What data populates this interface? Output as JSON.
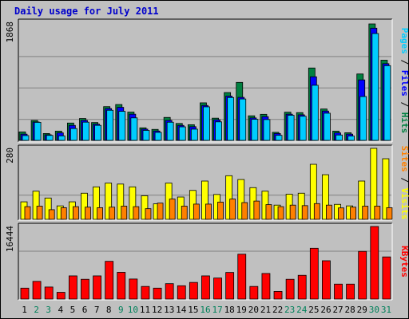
{
  "title": "Daily usage for July 2011",
  "chart_data": {
    "type": "bar",
    "title": "Daily usage for July 2011",
    "categories": [
      "1",
      "2",
      "3",
      "4",
      "5",
      "6",
      "7",
      "8",
      "9",
      "10",
      "11",
      "12",
      "13",
      "14",
      "15",
      "16",
      "17",
      "18",
      "19",
      "20",
      "21",
      "22",
      "23",
      "24",
      "25",
      "26",
      "27",
      "28",
      "29",
      "30",
      "31"
    ],
    "weekend_days": [
      "2",
      "3",
      "9",
      "10",
      "16",
      "17",
      "23",
      "24",
      "30",
      "31"
    ],
    "panels": [
      {
        "ylabel_parts": [
          "Pages",
          "Files",
          "Hits"
        ],
        "ylabel_colors": [
          "#00ccff",
          "#0000ff",
          "#008040"
        ],
        "ymax_label": "1868",
        "ymax": 1868,
        "series": [
          {
            "name": "Hits",
            "color": "#008040",
            "values": [
              135,
              319,
              110,
              148,
              278,
              351,
              286,
              541,
              575,
              454,
              201,
              176,
              368,
              271,
              251,
              602,
              356,
              767,
              930,
              394,
              418,
              129,
              452,
              445,
              1161,
              503,
              148,
              122,
              1065,
              1868,
              1286
            ]
          },
          {
            "name": "Files",
            "color": "#0000ff",
            "values": [
              100,
              295,
              90,
              120,
              240,
              320,
              260,
              510,
              530,
              420,
              180,
              150,
              320,
              240,
              220,
              560,
              330,
              710,
              690,
              360,
              380,
              110,
              420,
              410,
              1020,
              470,
              120,
              100,
              970,
              1800,
              1230
            ]
          },
          {
            "name": "Pages",
            "color": "#00ccff",
            "values": [
              77,
              289,
              80,
              72,
              190,
              292,
              241,
              483,
              466,
              361,
              160,
              128,
              291,
              217,
              180,
              538,
              297,
              687,
              664,
              338,
              334,
              81,
              403,
              387,
              884,
              436,
              86,
              69,
              703,
              1714,
              1198
            ]
          }
        ]
      },
      {
        "ylabel_parts": [
          "Sites",
          "Visits"
        ],
        "ylabel_colors": [
          "#ff8000",
          "#ffff00"
        ],
        "ymax_label": "280",
        "ymax": 280,
        "series": [
          {
            "name": "Visits",
            "color": "#ffff00",
            "values": [
              69,
              111,
              84,
              53,
              69,
              103,
              128,
              143,
              139,
              128,
              93,
              61,
              143,
              88,
              114,
              151,
              98,
              172,
              157,
              125,
              111,
              56,
              99,
              103,
              217,
              176,
              59,
              53,
              151,
              280,
              239
            ]
          },
          {
            "name": "Sites",
            "color": "#ff8000",
            "values": [
              50,
              52,
              38,
              46,
              50,
              48,
              46,
              48,
              52,
              50,
              42,
              64,
              80,
              52,
              60,
              60,
              68,
              80,
              66,
              72,
              58,
              50,
              56,
              54,
              62,
              56,
              45,
              48,
              52,
              52,
              46
            ]
          }
        ]
      },
      {
        "ylabel_parts": [
          "KBytes"
        ],
        "ylabel_colors": [
          "#ff0000"
        ],
        "ymax_label": "16444",
        "ymax": 16444,
        "series": [
          {
            "name": "KBytes",
            "color": "#ff0000",
            "values": [
              2480,
              4010,
              2730,
              1530,
              5250,
              4480,
              5250,
              8550,
              6060,
              4540,
              2860,
              2480,
              3490,
              3020,
              3770,
              5250,
              4770,
              6030,
              10170,
              2860,
              5800,
              1730,
              4480,
              5380,
              11510,
              8680,
              3390,
              3390,
              10800,
              16444,
              9550
            ]
          }
        ]
      }
    ]
  }
}
